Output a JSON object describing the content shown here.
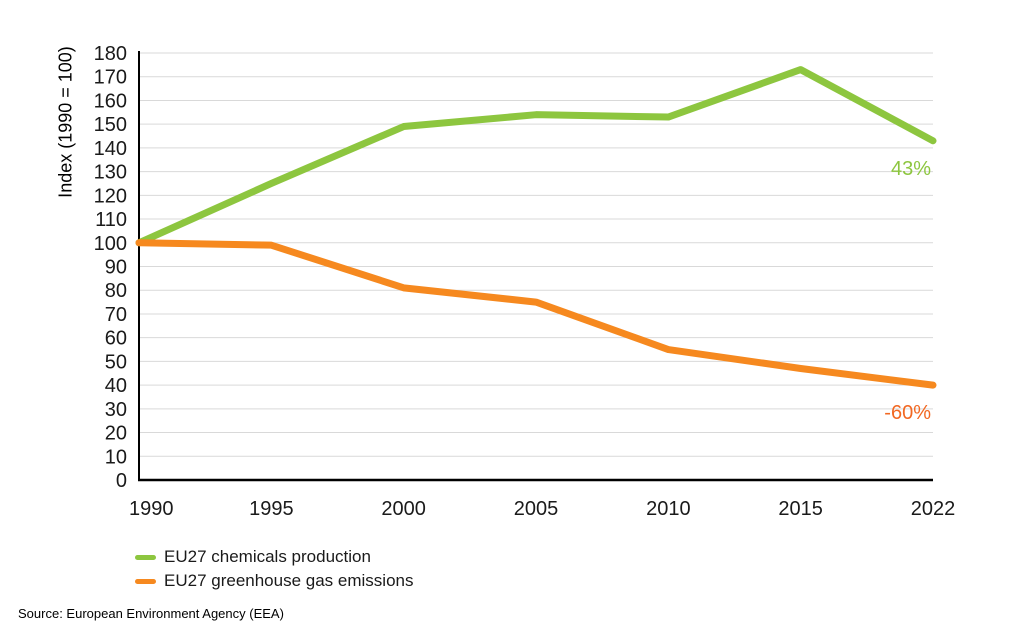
{
  "chart_data": {
    "type": "line",
    "title": "",
    "xlabel": "",
    "ylabel": "Index (1990 = 100)",
    "ylim": [
      0,
      180
    ],
    "ytick_step": 10,
    "y_ticks": [
      0,
      10,
      20,
      30,
      40,
      50,
      60,
      70,
      80,
      90,
      100,
      110,
      120,
      130,
      140,
      150,
      160,
      170,
      180
    ],
    "categories": [
      "1990",
      "1995",
      "2000",
      "2005",
      "2010",
      "2015",
      "2022"
    ],
    "grid": "horizontal",
    "legend_position": "bottom-left",
    "series": [
      {
        "name": "EU27 chemicals production",
        "color": "#8dc63f",
        "values": [
          100,
          125,
          149,
          154,
          153,
          173,
          143
        ],
        "end_label": "43%",
        "end_label_color": "#8dc63f"
      },
      {
        "name": "EU27 greenhouse gas emissions",
        "color": "#f6891f",
        "values": [
          100,
          99,
          81,
          75,
          55,
          47,
          40
        ],
        "end_label": "-60%",
        "end_label_color": "#f26822"
      }
    ]
  },
  "colors": {
    "axis": "#000000",
    "gridline": "#d9d9d9",
    "text": "#1a1a1a"
  },
  "source_note": "Source: European Environment Agency (EEA)"
}
